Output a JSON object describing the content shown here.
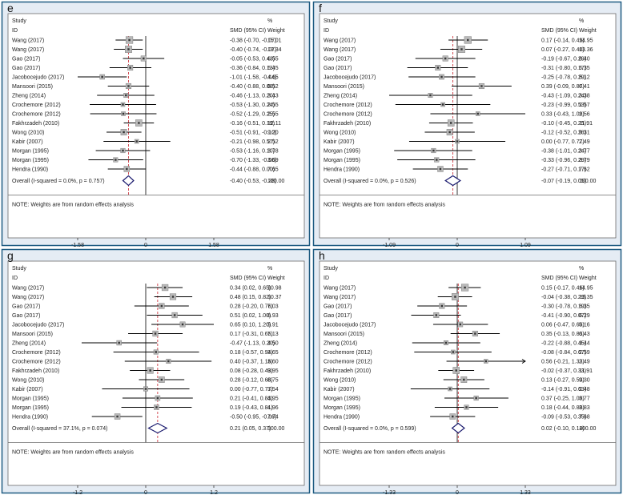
{
  "colors": {
    "frame": "#1f5c82",
    "panel_bg": "#e5ecf4",
    "plot_bg": "#ffffff",
    "box_fill": "#b9b9b9",
    "box_stroke": "#808080",
    "ci_line": "#000000",
    "ref_line": "#000000",
    "overall_line": "#c8232c",
    "diamond": "#1a1a6e"
  },
  "header": {
    "study": "Study",
    "id": "ID",
    "smd": "SMD (95% CI)",
    "pct": "%",
    "weight": "Weight"
  },
  "footer_note": "NOTE: Weights are from random effects analysis",
  "chart_data": [
    {
      "type": "forest",
      "letter": "e",
      "axis": {
        "min": -1.58,
        "max": 1.58,
        "ticks": [
          -1.58,
          0,
          1.58
        ],
        "tick_labels": [
          "-1.58",
          "0",
          "1.58"
        ]
      },
      "studies": [
        {
          "id": "Wang (2017)",
          "smd": -0.38,
          "lo": -0.7,
          "hi": -0.07,
          "ci": "-0.38 (-0.70, -0.07)",
          "weight": "15.01"
        },
        {
          "id": "Wang (2017)",
          "smd": -0.4,
          "lo": -0.74,
          "hi": -0.07,
          "ci": "-0.40 (-0.74, -0.07)",
          "weight": "13.34"
        },
        {
          "id": "Gao (2017)",
          "smd": -0.05,
          "lo": -0.53,
          "hi": 0.43,
          "ci": "-0.05 (-0.53, 0.43)",
          "weight": "6.55"
        },
        {
          "id": "Gao (2017)",
          "smd": -0.36,
          "lo": -0.84,
          "hi": 0.13,
          "ci": "-0.36 (-0.84, 0.13)",
          "weight": "6.45"
        },
        {
          "id": "Jacobocejudo (2017)",
          "smd": -1.01,
          "lo": -1.58,
          "hi": -0.44,
          "ci": "-1.01 (-1.58, -0.44)",
          "weight": "4.65"
        },
        {
          "id": "Mansoori (2015)",
          "smd": -0.4,
          "lo": -0.88,
          "hi": 0.08,
          "ci": "-0.40 (-0.88, 0.08)",
          "weight": "6.52"
        },
        {
          "id": "Zheng (2014)",
          "smd": -0.46,
          "lo": -1.13,
          "hi": 0.2,
          "ci": "-0.46 (-1.13, 0.20)",
          "weight": "3.43"
        },
        {
          "id": "Crochemore (2012)",
          "smd": -0.53,
          "lo": -1.3,
          "hi": 0.24,
          "ci": "-0.53 (-1.30, 0.24)",
          "weight": "2.55"
        },
        {
          "id": "Crochemore (2012)",
          "smd": -0.52,
          "lo": -1.29,
          "hi": 0.25,
          "ci": "-0.52 (-1.29, 0.25)",
          "weight": "2.55"
        },
        {
          "id": "Fakhrzadeh (2010)",
          "smd": -0.16,
          "lo": -0.51,
          "hi": 0.19,
          "ci": "-0.16 (-0.51, 0.19)",
          "weight": "12.11"
        },
        {
          "id": "Wong (2010)",
          "smd": -0.51,
          "lo": -0.91,
          "hi": -0.1,
          "ci": "-0.51 (-0.91, -0.10)",
          "weight": "9.20"
        },
        {
          "id": "Kabir (2007)",
          "smd": -0.21,
          "lo": -0.98,
          "hi": 0.57,
          "ci": "-0.21 (-0.98, 0.57)",
          "weight": "2.52"
        },
        {
          "id": "Morgan (1995)",
          "smd": -0.53,
          "lo": -1.16,
          "hi": 0.1,
          "ci": "-0.53 (-1.16, 0.10)",
          "weight": "3.78"
        },
        {
          "id": "Morgan (1995)",
          "smd": -0.7,
          "lo": -1.33,
          "hi": -0.06,
          "ci": "-0.70 (-1.33, -0.06)",
          "weight": "3.69"
        },
        {
          "id": "Hendra (1990)",
          "smd": -0.44,
          "lo": -0.88,
          "hi": 0.0,
          "ci": "-0.44 (-0.88, 0.00)",
          "weight": "7.65"
        }
      ],
      "overall": {
        "label": "Overall  (I-squared = 0.0%, p = 0.757)",
        "smd": -0.4,
        "lo": -0.53,
        "hi": -0.28,
        "ci": "-0.40 (-0.53, -0.28)",
        "weight": "100.00"
      }
    },
    {
      "type": "forest",
      "letter": "f",
      "axis": {
        "min": -1.09,
        "max": 1.09,
        "ticks": [
          -1.09,
          0,
          1.09
        ],
        "tick_labels": [
          "-1.09",
          "0",
          "1.09"
        ]
      },
      "studies": [
        {
          "id": "Wang (2017)",
          "smd": 0.17,
          "lo": -0.14,
          "hi": 0.49,
          "ci": "0.17 (-0.14, 0.49)",
          "weight": "14.95"
        },
        {
          "id": "Wang (2017)",
          "smd": 0.07,
          "lo": -0.27,
          "hi": 0.4,
          "ci": "0.07 (-0.27, 0.40)",
          "weight": "13.36"
        },
        {
          "id": "Gao (2017)",
          "smd": -0.19,
          "lo": -0.67,
          "hi": 0.29,
          "ci": "-0.19 (-0.67, 0.29)",
          "weight": "6.40"
        },
        {
          "id": "Gao (2017)",
          "smd": -0.31,
          "lo": -0.8,
          "hi": 0.17,
          "ci": "-0.31 (-0.80, 0.17)",
          "weight": "6.35"
        },
        {
          "id": "Jacobocejudo (2017)",
          "smd": -0.25,
          "lo": -0.78,
          "hi": 0.29,
          "ci": "-0.25 (-0.78, 0.29)",
          "weight": "5.12"
        },
        {
          "id": "Mansoori (2015)",
          "smd": 0.39,
          "lo": -0.09,
          "hi": 0.87,
          "ci": "0.39 (-0.09, 0.87)",
          "weight": "6.41"
        },
        {
          "id": "Zheng (2014)",
          "smd": -0.43,
          "lo": -1.09,
          "hi": 0.24,
          "ci": "-0.43 (-1.09, 0.24)",
          "weight": "3.38"
        },
        {
          "id": "Crochemore (2012)",
          "smd": -0.23,
          "lo": -0.99,
          "hi": 0.53,
          "ci": "-0.23 (-0.99, 0.53)",
          "weight": "2.57"
        },
        {
          "id": "Crochemore (2012)",
          "smd": 0.33,
          "lo": -0.43,
          "hi": 1.09,
          "ci": "0.33 (-0.43, 1.09)",
          "weight": "2.56"
        },
        {
          "id": "Fakhrzadeh (2010)",
          "smd": -0.1,
          "lo": -0.45,
          "hi": 0.25,
          "ci": "-0.10 (-0.45, 0.25)",
          "weight": "11.91"
        },
        {
          "id": "Wong (2010)",
          "smd": -0.12,
          "lo": -0.52,
          "hi": 0.28,
          "ci": "-0.12 (-0.52, 0.28)",
          "weight": "9.31"
        },
        {
          "id": "Kabir (2007)",
          "smd": 0.0,
          "lo": -0.77,
          "hi": 0.77,
          "ci": "0.00 (-0.77, 0.77)",
          "weight": "2.49"
        },
        {
          "id": "Morgan (1995)",
          "smd": -0.38,
          "lo": -1.01,
          "hi": 0.24,
          "ci": "-0.38 (-1.01, 0.24)",
          "weight": "3.77"
        },
        {
          "id": "Morgan (1995)",
          "smd": -0.33,
          "lo": -0.96,
          "hi": 0.29,
          "ci": "-0.33 (-0.96, 0.29)",
          "weight": "3.79"
        },
        {
          "id": "Hendra (1990)",
          "smd": -0.27,
          "lo": -0.71,
          "hi": 0.17,
          "ci": "-0.27 (-0.71, 0.17)",
          "weight": "7.62"
        }
      ],
      "overall": {
        "label": "Overall  (I-squared = 0.0%, p = 0.526)",
        "smd": -0.07,
        "lo": -0.19,
        "hi": 0.05,
        "ci": "-0.07 (-0.19, 0.05)",
        "weight": "100.00"
      }
    },
    {
      "type": "forest",
      "letter": "g",
      "axis": {
        "min": -1.2,
        "max": 1.2,
        "ticks": [
          -1.2,
          0,
          1.2
        ],
        "tick_labels": [
          "-1.2",
          "0",
          "1.2"
        ]
      },
      "studies": [
        {
          "id": "Wang (2017)",
          "smd": 0.34,
          "lo": 0.02,
          "hi": 0.65,
          "ci": "0.34 (0.02, 0.65)",
          "weight": "10.98"
        },
        {
          "id": "Wang (2017)",
          "smd": 0.48,
          "lo": 0.15,
          "hi": 0.82,
          "ci": "0.48 (0.15, 0.82)",
          "weight": "10.37"
        },
        {
          "id": "Gao (2017)",
          "smd": 0.28,
          "lo": -0.2,
          "hi": 0.76,
          "ci": "0.28 (-0.20, 0.76)",
          "weight": "7.03"
        },
        {
          "id": "Gao (2017)",
          "smd": 0.51,
          "lo": 0.02,
          "hi": 1.0,
          "ci": "0.51 (0.02, 1.00)",
          "weight": "6.93"
        },
        {
          "id": "Jacobocejudo (2017)",
          "smd": 0.65,
          "lo": 0.1,
          "hi": 1.2,
          "ci": "0.65 (0.10, 1.20)",
          "weight": "5.91"
        },
        {
          "id": "Mansoori (2015)",
          "smd": 0.17,
          "lo": -0.31,
          "hi": 0.65,
          "ci": "0.17 (-0.31, 0.65)",
          "weight": "7.13"
        },
        {
          "id": "Zheng (2014)",
          "smd": -0.47,
          "lo": -1.13,
          "hi": 0.2,
          "ci": "-0.47 (-1.13, 0.20)",
          "weight": "4.50"
        },
        {
          "id": "Crochemore (2012)",
          "smd": 0.18,
          "lo": -0.57,
          "hi": 0.94,
          "ci": "0.18 (-0.57, 0.94)",
          "weight": "3.65"
        },
        {
          "id": "Crochemore (2012)",
          "smd": 0.4,
          "lo": -0.37,
          "hi": 1.16,
          "ci": "0.40 (-0.37, 1.16)",
          "weight": "3.60"
        },
        {
          "id": "Fakhrzadeh (2010)",
          "smd": 0.08,
          "lo": -0.28,
          "hi": 0.43,
          "ci": "0.08 (-0.28, 0.43)",
          "weight": "9.95"
        },
        {
          "id": "Wong (2010)",
          "smd": 0.28,
          "lo": -0.12,
          "hi": 0.68,
          "ci": "0.28 (-0.12, 0.68)",
          "weight": "8.75"
        },
        {
          "id": "Kabir (2007)",
          "smd": 0.0,
          "lo": -0.77,
          "hi": 0.77,
          "ci": "0.00 (-0.77, 0.77)",
          "weight": "3.54"
        },
        {
          "id": "Morgan (1995)",
          "smd": 0.21,
          "lo": -0.41,
          "hi": 0.83,
          "ci": "0.21 (-0.41, 0.83)",
          "weight": "4.95"
        },
        {
          "id": "Morgan (1995)",
          "smd": 0.19,
          "lo": -0.43,
          "hi": 0.81,
          "ci": "0.19 (-0.43, 0.81)",
          "weight": "4.96"
        },
        {
          "id": "Hendra (1990)",
          "smd": -0.5,
          "lo": -0.95,
          "hi": -0.06,
          "ci": "-0.50 (-0.95, -0.06)",
          "weight": "7.74"
        }
      ],
      "overall": {
        "label": "Overall  (I-squared = 37.1%, p = 0.074)",
        "smd": 0.21,
        "lo": 0.05,
        "hi": 0.37,
        "ci": "0.21 (0.05, 0.37)",
        "weight": "100.00"
      }
    },
    {
      "type": "forest",
      "letter": "h",
      "axis": {
        "min": -1.33,
        "max": 1.33,
        "ticks": [
          -1.33,
          0,
          1.33
        ],
        "tick_labels": [
          "-1.33",
          "0",
          "1.33"
        ]
      },
      "studies": [
        {
          "id": "Wang (2017)",
          "smd": 0.15,
          "lo": -0.17,
          "hi": 0.46,
          "ci": "0.15 (-0.17, 0.46)",
          "weight": "14.95"
        },
        {
          "id": "Wang (2017)",
          "smd": -0.04,
          "lo": -0.38,
          "hi": 0.29,
          "ci": "-0.04 (-0.38, 0.29)",
          "weight": "13.35"
        },
        {
          "id": "Gao (2017)",
          "smd": -0.3,
          "lo": -0.78,
          "hi": 0.19,
          "ci": "-0.30 (-0.78, 0.19)",
          "weight": "6.35"
        },
        {
          "id": "Gao (2017)",
          "smd": -0.41,
          "lo": -0.9,
          "hi": 0.07,
          "ci": "-0.41 (-0.90, 0.07)",
          "weight": "6.29"
        },
        {
          "id": "Jacobocejudo (2017)",
          "smd": 0.06,
          "lo": -0.47,
          "hi": 0.6,
          "ci": "0.06 (-0.47, 0.60)",
          "weight": "5.16"
        },
        {
          "id": "Mansoori (2015)",
          "smd": 0.35,
          "lo": -0.13,
          "hi": 0.83,
          "ci": "0.35 (-0.13, 0.83)",
          "weight": "6.43"
        },
        {
          "id": "Zheng (2014)",
          "smd": -0.22,
          "lo": -0.88,
          "hi": 0.45,
          "ci": "-0.22 (-0.88, 0.45)",
          "weight": "3.44"
        },
        {
          "id": "Crochemore (2012)",
          "smd": -0.08,
          "lo": -0.84,
          "hi": 0.67,
          "ci": "-0.08 (-0.84, 0.67)",
          "weight": "2.59"
        },
        {
          "id": "Crochemore (2012)",
          "smd": 0.56,
          "lo": -0.21,
          "hi": 1.33,
          "ci": "0.56 (-0.21, 1.33)",
          "weight": "2.49"
        },
        {
          "id": "Fakhrzadeh (2010)",
          "smd": -0.02,
          "lo": -0.37,
          "hi": 0.33,
          "ci": "-0.02 (-0.37, 0.33)",
          "weight": "11.91"
        },
        {
          "id": "Wong (2010)",
          "smd": 0.13,
          "lo": -0.27,
          "hi": 0.53,
          "ci": "0.13 (-0.27, 0.53)",
          "weight": "9.30"
        },
        {
          "id": "Kabir (2007)",
          "smd": -0.14,
          "lo": -0.91,
          "hi": 0.63,
          "ci": "-0.14 (-0.91, 0.63)",
          "weight": "2.48"
        },
        {
          "id": "Morgan (1995)",
          "smd": 0.37,
          "lo": -0.25,
          "hi": 1.0,
          "ci": "0.37 (-0.25, 1.00)",
          "weight": "3.77"
        },
        {
          "id": "Morgan (1995)",
          "smd": 0.18,
          "lo": -0.44,
          "hi": 0.8,
          "ci": "0.18 (-0.44, 0.80)",
          "weight": "3.83"
        },
        {
          "id": "Hendra (1990)",
          "smd": -0.09,
          "lo": -0.53,
          "hi": 0.35,
          "ci": "-0.09 (-0.53, 0.35)",
          "weight": "7.68"
        }
      ],
      "overall": {
        "label": "Overall  (I-squared = 0.0%, p = 0.599)",
        "smd": 0.02,
        "lo": -0.1,
        "hi": 0.14,
        "ci": "0.02 (-0.10, 0.14)",
        "weight": "100.00"
      }
    }
  ]
}
